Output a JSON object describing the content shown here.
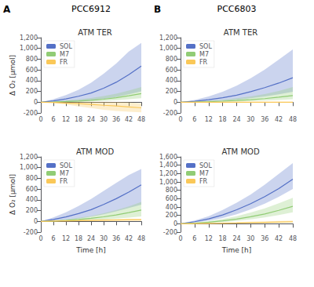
{
  "chart_data": [
    {
      "type": "line",
      "title": "ATM TER",
      "ylabel": "Δ O₂ [μmol]",
      "annotations": [
        "A",
        "PCC6912"
      ],
      "x": [
        0,
        6,
        12,
        18,
        24,
        30,
        36,
        42,
        48
      ],
      "xlim": [
        0,
        48
      ],
      "xticks": [
        0,
        6,
        12,
        18,
        24,
        30,
        36,
        42,
        48
      ],
      "ylim": [
        -200,
        1200
      ],
      "yticks": [
        -200,
        0,
        200,
        400,
        600,
        800,
        1000,
        1200
      ],
      "grid": false,
      "legend": "upper left",
      "series": [
        {
          "name": "SOL",
          "values": [
            0,
            25,
            60,
            110,
            170,
            260,
            370,
            510,
            670
          ],
          "low": [
            0,
            3,
            10,
            20,
            35,
            60,
            95,
            145,
            200
          ],
          "high": [
            0,
            55,
            130,
            230,
            360,
            530,
            720,
            940,
            1100
          ]
        },
        {
          "name": "M7",
          "values": [
            0,
            4,
            12,
            22,
            36,
            55,
            82,
            118,
            158
          ],
          "low": [
            0,
            0,
            4,
            8,
            14,
            22,
            36,
            54,
            75
          ],
          "high": [
            0,
            12,
            30,
            50,
            78,
            115,
            158,
            215,
            280
          ]
        },
        {
          "name": "FR",
          "values": [
            0,
            -5,
            -15,
            -28,
            -42,
            -58,
            -72,
            -88,
            -105
          ],
          "low": [
            0,
            -18,
            -45,
            -78,
            -110,
            -140,
            -162,
            -178,
            -190
          ],
          "high": [
            0,
            2,
            4,
            6,
            8,
            8,
            4,
            -4,
            -22
          ]
        }
      ]
    },
    {
      "type": "line",
      "title": "ATM TER",
      "annotations": [
        "B",
        "PCC6803"
      ],
      "x": [
        0,
        6,
        12,
        18,
        24,
        30,
        36,
        42,
        48
      ],
      "xlim": [
        0,
        48
      ],
      "xticks": [
        0,
        6,
        12,
        18,
        24,
        30,
        36,
        42,
        48
      ],
      "ylim": [
        -200,
        1200
      ],
      "yticks": [
        -200,
        0,
        200,
        400,
        600,
        800,
        1000,
        1200
      ],
      "grid": false,
      "legend": "upper left",
      "series": [
        {
          "name": "SOL",
          "values": [
            0,
            18,
            45,
            82,
            130,
            195,
            270,
            355,
            455
          ],
          "low": [
            0,
            4,
            12,
            25,
            45,
            72,
            105,
            145,
            195
          ],
          "high": [
            0,
            42,
            105,
            195,
            305,
            445,
            605,
            790,
            980
          ]
        },
        {
          "name": "M7",
          "values": [
            0,
            4,
            10,
            19,
            32,
            47,
            66,
            94,
            124
          ],
          "low": [
            0,
            1,
            4,
            8,
            13,
            19,
            28,
            40,
            55
          ],
          "high": [
            0,
            11,
            26,
            46,
            72,
            108,
            150,
            208,
            280
          ]
        },
        {
          "name": "FR",
          "values": [
            0,
            0,
            0,
            0,
            0,
            0,
            0,
            0,
            0
          ],
          "low": [
            0,
            -2,
            -3,
            -4,
            -5,
            -5,
            -5,
            -5,
            -5
          ],
          "high": [
            0,
            2,
            4,
            6,
            8,
            9,
            9,
            9,
            9
          ]
        }
      ]
    },
    {
      "type": "line",
      "title": "ATM MOD",
      "xlabel": "Time [h]",
      "ylabel": "Δ O₂ [μmol]",
      "x": [
        0,
        6,
        12,
        18,
        24,
        30,
        36,
        42,
        48
      ],
      "xlim": [
        0,
        48
      ],
      "xticks": [
        0,
        6,
        12,
        18,
        24,
        30,
        36,
        42,
        48
      ],
      "ylim": [
        -200,
        1200
      ],
      "yticks": [
        -200,
        0,
        200,
        400,
        600,
        800,
        1000,
        1200
      ],
      "grid": false,
      "legend": "upper left",
      "series": [
        {
          "name": "SOL",
          "values": [
            0,
            35,
            82,
            145,
            218,
            315,
            422,
            545,
            680
          ],
          "low": [
            0,
            8,
            25,
            52,
            88,
            132,
            185,
            248,
            310
          ],
          "high": [
            0,
            72,
            168,
            285,
            415,
            565,
            715,
            860,
            975
          ]
        },
        {
          "name": "M7",
          "values": [
            0,
            7,
            18,
            34,
            56,
            84,
            120,
            162,
            210
          ],
          "low": [
            0,
            2,
            7,
            13,
            22,
            34,
            50,
            68,
            92
          ],
          "high": [
            0,
            16,
            36,
            65,
            100,
            150,
            210,
            278,
            360
          ]
        },
        {
          "name": "FR",
          "values": [
            0,
            5,
            10,
            14,
            18,
            21,
            24,
            27,
            29
          ],
          "low": [
            0,
            0,
            2,
            4,
            7,
            9,
            11,
            13,
            15
          ],
          "high": [
            0,
            11,
            20,
            29,
            37,
            42,
            46,
            50,
            53
          ]
        }
      ]
    },
    {
      "type": "line",
      "title": "ATM MOD",
      "xlabel": "Time [h]",
      "x": [
        0,
        6,
        12,
        18,
        24,
        30,
        36,
        42,
        48
      ],
      "xlim": [
        0,
        48
      ],
      "xticks": [
        0,
        6,
        12,
        18,
        24,
        30,
        36,
        42,
        48
      ],
      "ylim": [
        -200,
        1600
      ],
      "yticks": [
        -200,
        0,
        200,
        400,
        600,
        800,
        1000,
        1200,
        1400,
        1600
      ],
      "grid": false,
      "legend": "upper left",
      "series": [
        {
          "name": "SOL",
          "values": [
            0,
            48,
            115,
            210,
            335,
            480,
            648,
            842,
            1065
          ],
          "low": [
            0,
            28,
            70,
            138,
            228,
            345,
            482,
            645,
            830
          ],
          "high": [
            0,
            75,
            178,
            328,
            505,
            700,
            935,
            1190,
            1450
          ]
        },
        {
          "name": "M7",
          "values": [
            0,
            14,
            38,
            70,
            112,
            168,
            235,
            320,
            415
          ],
          "low": [
            0,
            7,
            20,
            40,
            68,
            105,
            150,
            208,
            272
          ],
          "high": [
            0,
            26,
            62,
            116,
            182,
            268,
            366,
            490,
            622
          ]
        },
        {
          "name": "FR",
          "values": [
            0,
            5,
            10,
            14,
            19,
            26,
            33,
            40,
            48
          ],
          "low": [
            0,
            0,
            2,
            4,
            7,
            11,
            15,
            20,
            26
          ],
          "high": [
            0,
            11,
            20,
            29,
            37,
            47,
            57,
            67,
            76
          ]
        }
      ]
    }
  ]
}
